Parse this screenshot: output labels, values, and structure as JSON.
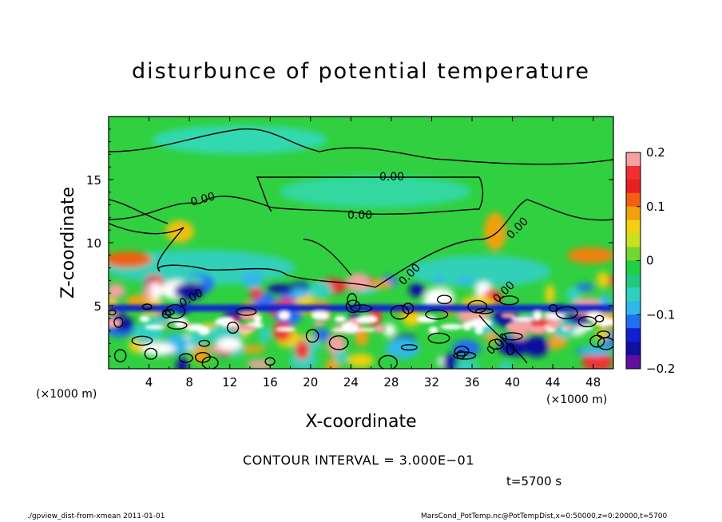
{
  "chart_data": {
    "type": "heatmap",
    "title": "disturbunce of potential temperature",
    "xlabel": "X-coordinate",
    "ylabel": "Z-coordinate",
    "x_unit_label": "(×1000 m)",
    "z_unit_label": "(×1000 m)",
    "xlim": [
      0,
      50
    ],
    "ylim": [
      0,
      20
    ],
    "x_ticks": [
      4,
      8,
      12,
      16,
      20,
      24,
      28,
      32,
      36,
      40,
      44,
      48
    ],
    "y_ticks": [
      5,
      10,
      15
    ],
    "colorbar": {
      "ticks": [
        0.2,
        0.1,
        0,
        -0.1,
        -0.2
      ],
      "tick_labels": [
        "0.2",
        "0.1",
        "0",
        "−0.1",
        "−0.2"
      ],
      "range": [
        -0.2,
        0.2
      ],
      "colors": [
        "#f7a1a1",
        "#f03030",
        "#e82020",
        "#f06010",
        "#f0a010",
        "#f0d010",
        "#c8e020",
        "#70d830",
        "#20d040",
        "#20c880",
        "#30d0c0",
        "#30b8e8",
        "#2070f0",
        "#1020d0",
        "#1010a0",
        "#6010a0"
      ]
    },
    "contour_labels": [
      "0.00",
      "0.00",
      "0.00",
      "0.00",
      "0.00",
      "0.00",
      "0.00",
      "0.00"
    ],
    "contour_interval_text": "CONTOUR INTERVAL = 3.000E−01",
    "time_text": "t=5700 s"
  },
  "footer": {
    "left": "./gpview_dist-from-xmean  2011-01-01",
    "right": "MarsCond_PotTemp.nc@PotTempDist,x=0:50000,z=0:20000,t=5700"
  }
}
